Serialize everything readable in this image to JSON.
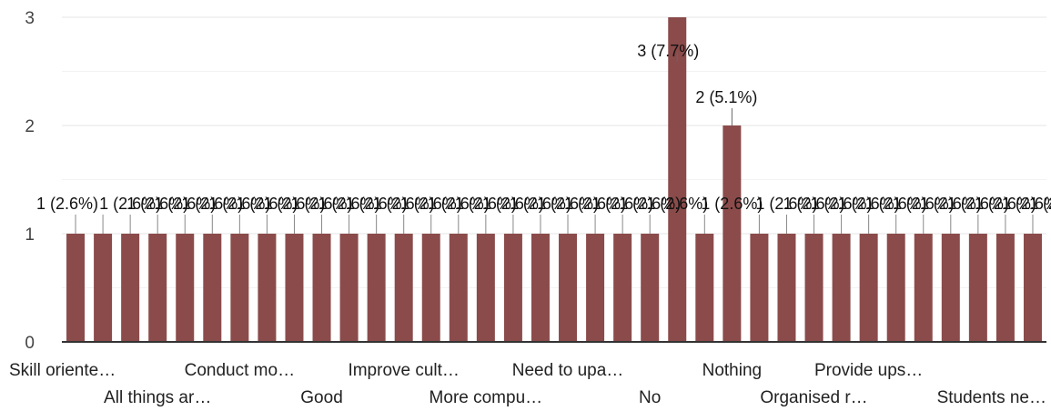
{
  "chart_data": {
    "type": "bar",
    "ylim": [
      0,
      3
    ],
    "yticks": [
      "0",
      "1",
      "2",
      "3"
    ],
    "grid": true,
    "bar_color": "#8b4b4b",
    "values": [
      1,
      1,
      1,
      1,
      1,
      1,
      1,
      1,
      1,
      1,
      1,
      1,
      1,
      1,
      1,
      1,
      1,
      1,
      1,
      1,
      1,
      1,
      3,
      1,
      2,
      1,
      1,
      1,
      1,
      1,
      1,
      1,
      1,
      1,
      1,
      1
    ],
    "data_labels": [
      "1 (2.6%)",
      "1 (2.6%)",
      "1 (2.6%)",
      "1 (2.6%)",
      "1 (2.6%)",
      "1 (2.6%)",
      "1 (2.6%)",
      "1 (2.6%)",
      "1 (2.6%)",
      "1 (2.6%)",
      "1 (2.6%)",
      "1 (2.6%)",
      "1 (2.6%)",
      "1 (2.6%)",
      "1 (2.6%)",
      "1 (2.6%)",
      "1 (2.6%)",
      "1 (2.6%)",
      "1 (2.6%)",
      "1 (2.6%)",
      "1 (2.6%)",
      "1 (2.6%)",
      "3 (7.7%)",
      "1 (2.6%)",
      "2 (5.1%)",
      "1 (2.6%)",
      "1 (2.6%)",
      "1 (2.6%)",
      "1 (2.6%)",
      "1 (2.6%)",
      "1 (2.6%)",
      "1 (2.6%)",
      "1 (2.6%)",
      "1 (2.6%)",
      "1 (2.6%)",
      "1 (2.6%)"
    ],
    "x_tick_labels": [
      {
        "index": 0,
        "row": 0,
        "text": "Skill oriente…"
      },
      {
        "index": 3,
        "row": 1,
        "text": "All things ar…"
      },
      {
        "index": 6,
        "row": 0,
        "text": "Conduct mo…"
      },
      {
        "index": 9,
        "row": 1,
        "text": "Good"
      },
      {
        "index": 12,
        "row": 0,
        "text": "Improve cult…"
      },
      {
        "index": 15,
        "row": 1,
        "text": "More compu…"
      },
      {
        "index": 18,
        "row": 0,
        "text": "Need to upa…"
      },
      {
        "index": 21,
        "row": 1,
        "text": "No"
      },
      {
        "index": 24,
        "row": 0,
        "text": "Nothing"
      },
      {
        "index": 27,
        "row": 1,
        "text": "Organised r…"
      },
      {
        "index": 29,
        "row": 0,
        "text": "Provide ups…"
      },
      {
        "index": 32,
        "row": 1,
        "text": "Students ne…"
      }
    ]
  }
}
